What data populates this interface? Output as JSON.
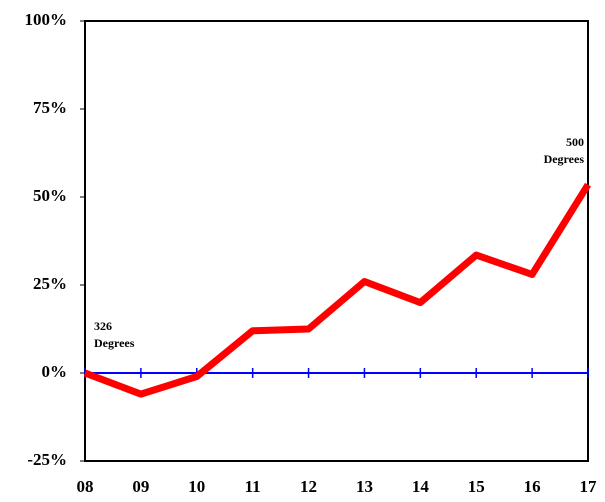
{
  "chart_data": {
    "type": "line",
    "categories": [
      "08",
      "09",
      "10",
      "11",
      "12",
      "13",
      "14",
      "15",
      "16",
      "17"
    ],
    "series": [
      {
        "color": "#ff0000",
        "values": [
          0,
          -6,
          -1,
          12,
          12.5,
          26,
          20,
          33.5,
          28,
          53.5
        ]
      }
    ],
    "ylim": [
      -25,
      100
    ],
    "yticks": [
      {
        "value": -25,
        "label": "-25%"
      },
      {
        "value": 0,
        "label": "0%"
      },
      {
        "value": 25,
        "label": "25%"
      },
      {
        "value": 50,
        "label": "50%"
      },
      {
        "value": 75,
        "label": "75%"
      },
      {
        "value": 100,
        "label": "100%"
      }
    ],
    "zero_line_color": "#0000ff",
    "annotations": [
      {
        "lines": [
          "326",
          "Degrees"
        ]
      },
      {
        "lines": [
          "500",
          "Degrees"
        ]
      }
    ]
  }
}
